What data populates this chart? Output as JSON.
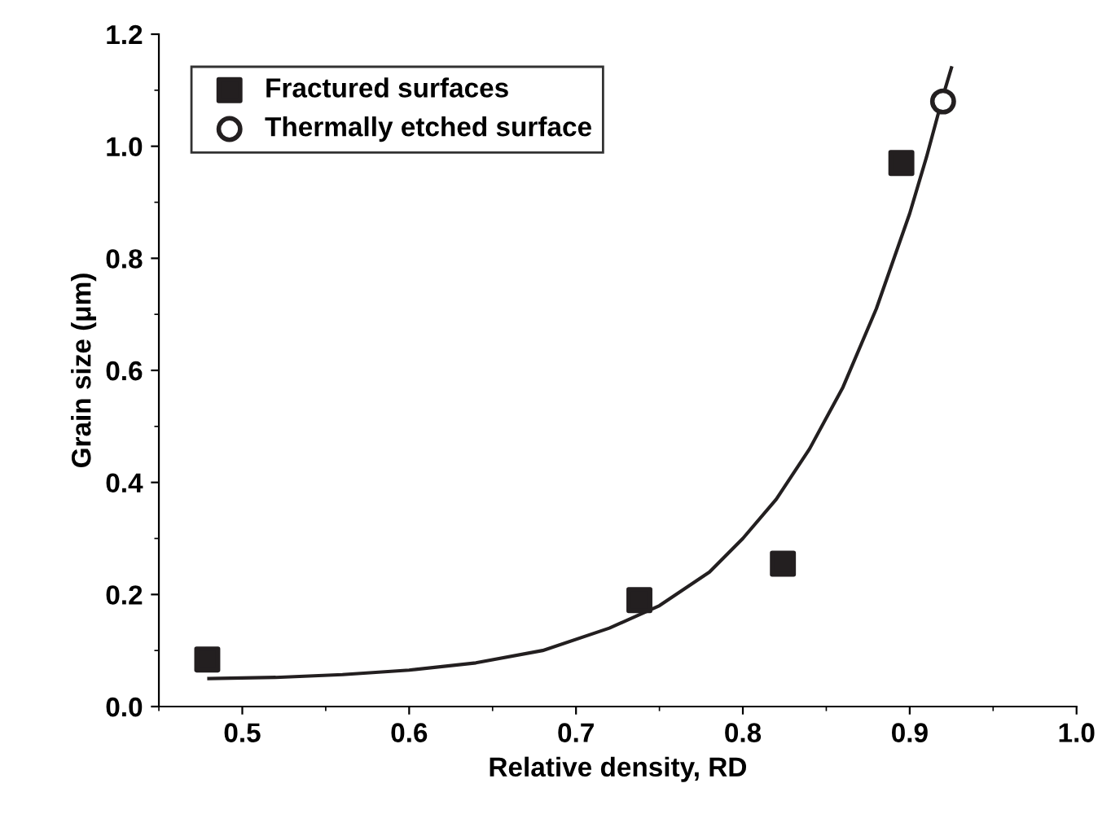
{
  "chart_data": {
    "type": "scatter",
    "xlabel": "Relative density, RD",
    "ylabel": "Grain size (μm)",
    "xlim": [
      0.45,
      1.0
    ],
    "xticks": [
      0.5,
      0.6,
      0.7,
      0.8,
      0.9,
      {
        "value": 1.0,
        "label": "1.0"
      }
    ],
    "ylim": [
      0.0,
      1.2
    ],
    "yticks": [
      {
        "value": 0.0,
        "label": "0.0"
      },
      0.2,
      0.4,
      0.6,
      0.8,
      {
        "value": 1.0,
        "label": "1.0"
      },
      1.2
    ],
    "grid": false,
    "legend": "top left",
    "series": [
      {
        "name": "Fractured surfaces",
        "marker": "square",
        "color": "#231f20",
        "x": [
          0.479,
          0.738,
          0.824,
          0.895
        ],
        "values": [
          0.084,
          0.19,
          0.255,
          0.97
        ]
      },
      {
        "name": "Thermally etched surface",
        "marker": "circle",
        "color": "#231f20",
        "x": [
          0.92
        ],
        "values": [
          1.08
        ]
      },
      {
        "type": "line",
        "marker": "none",
        "color": "#231f20",
        "x": [
          0.48,
          0.52,
          0.56,
          0.6,
          0.64,
          0.68,
          0.72,
          0.75,
          0.78,
          0.8,
          0.82,
          0.84,
          0.86,
          0.88,
          0.9,
          0.91,
          0.92,
          0.925
        ],
        "values": [
          0.05,
          0.052,
          0.057,
          0.065,
          0.078,
          0.1,
          0.14,
          0.18,
          0.24,
          0.3,
          0.37,
          0.46,
          0.57,
          0.71,
          0.88,
          0.98,
          1.09,
          1.14
        ]
      }
    ]
  }
}
